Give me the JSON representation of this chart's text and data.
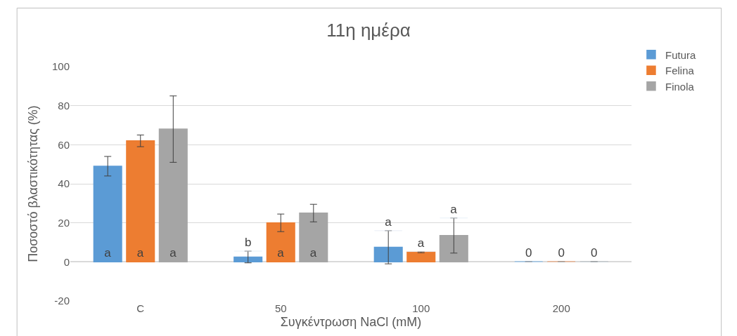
{
  "chart_data": {
    "type": "bar",
    "title": "11η ημέρα",
    "xlabel": "Συγκέντρωση NaCl (mM)",
    "ylabel": "Ποσοστό βλαστικότητας (%)",
    "categories": [
      "C",
      "50",
      "100",
      "200"
    ],
    "series": [
      {
        "name": "Futura",
        "color": "#5b9bd5",
        "values": [
          49,
          2.5,
          7.5,
          0
        ],
        "errors": [
          5,
          3,
          8.5,
          null
        ],
        "value_labels": [
          "a",
          "b",
          "a",
          "0"
        ]
      },
      {
        "name": "Felina",
        "color": "#ed7d31",
        "values": [
          62,
          20,
          5,
          0
        ],
        "errors": [
          3,
          4.5,
          0.3,
          null
        ],
        "value_labels": [
          "a",
          "a",
          "a",
          "0"
        ]
      },
      {
        "name": "Finola",
        "color": "#a5a5a5",
        "values": [
          68,
          25,
          13.5,
          0
        ],
        "errors": [
          17,
          4.5,
          9,
          null
        ],
        "value_labels": [
          "a",
          "a",
          "a",
          "0"
        ]
      }
    ],
    "ylim": [
      -20,
      100
    ],
    "yticks": [
      -20,
      0,
      20,
      40,
      60,
      80,
      100
    ],
    "grid": "y",
    "legend": "top right"
  }
}
